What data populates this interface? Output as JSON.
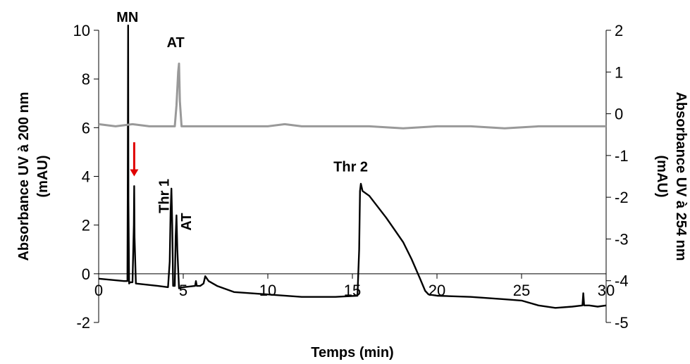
{
  "chart_data": {
    "type": "line",
    "title": "",
    "xlabel": "Temps (min)",
    "ylabel_left": [
      "Absorbance UV à 200 nm",
      "(mAU)"
    ],
    "ylabel_right": [
      "Absorbance UV à 254 nm",
      "(mAU)"
    ],
    "xlim": [
      0,
      30
    ],
    "ylim_left": [
      -2,
      10
    ],
    "ylim_right": [
      -5,
      2
    ],
    "xticks": [
      0,
      5,
      10,
      15,
      20,
      25,
      30
    ],
    "yticks_left": [
      -2,
      0,
      2,
      4,
      6,
      8,
      10
    ],
    "yticks_right": [
      -5,
      -4,
      -3,
      -2,
      -1,
      0,
      1,
      2
    ],
    "xtick_labels": [
      "0",
      "5",
      "10",
      "15",
      "20",
      "25",
      "30"
    ],
    "ytick_labels_left": [
      "-2",
      "0",
      "2",
      "4",
      "6",
      "8",
      "10"
    ],
    "ytick_labels_right": [
      "-5",
      "-4",
      "-3",
      "-2",
      "-1",
      "0",
      "1",
      "2"
    ],
    "grid": false,
    "series": [
      {
        "axis": "left",
        "color": "#000000",
        "x": [
          0,
          1.5,
          1.7,
          1.72,
          1.74,
          1.76,
          1.8,
          1.85,
          2.0,
          2.08,
          2.1,
          2.12,
          2.2,
          3.5,
          4.1,
          4.2,
          4.25,
          4.3,
          4.35,
          4.4,
          4.5,
          4.55,
          4.6,
          4.65,
          4.75,
          5.0,
          5.7,
          5.75,
          5.8,
          6.0,
          6.2,
          6.3,
          6.5,
          7.0,
          8.0,
          10.0,
          12.0,
          14.0,
          15.3,
          15.4,
          15.45,
          15.5,
          15.6,
          16.0,
          17.0,
          17.5,
          18.0,
          18.5,
          19.0,
          19.3,
          19.5,
          20.0,
          22.0,
          24.0,
          25.0,
          26.0,
          27.0,
          28.0,
          28.6,
          28.65,
          28.7,
          29.0,
          29.5,
          30.0
        ],
        "y": [
          -0.2,
          -0.3,
          -0.3,
          4.0,
          10.2,
          3.0,
          -0.4,
          -0.35,
          -0.35,
          2.0,
          3.6,
          1.5,
          -0.4,
          -0.5,
          -0.55,
          0.5,
          2.5,
          3.5,
          2.0,
          -0.5,
          -0.5,
          1.5,
          2.4,
          1.0,
          -0.6,
          -0.55,
          -0.5,
          -0.3,
          -0.5,
          -0.5,
          -0.4,
          -0.1,
          -0.3,
          -0.5,
          -0.75,
          -0.85,
          -0.95,
          -0.95,
          -0.9,
          1.0,
          3.4,
          3.7,
          3.4,
          3.2,
          2.3,
          1.8,
          1.3,
          0.6,
          -0.2,
          -0.7,
          -0.85,
          -0.9,
          -0.95,
          -1.05,
          -1.1,
          -1.3,
          -1.4,
          -1.35,
          -1.3,
          -0.8,
          -1.3,
          -1.3,
          -1.35,
          -1.3
        ]
      },
      {
        "axis": "right",
        "color": "#999999",
        "x": [
          0,
          1,
          2,
          3,
          4,
          4.5,
          4.6,
          4.7,
          4.75,
          4.8,
          4.9,
          5.0,
          5.5,
          6.0,
          8.0,
          10.0,
          11.0,
          12.0,
          14.0,
          16.0,
          18.0,
          20.0,
          22.0,
          24.0,
          26.0,
          28.0,
          30.0
        ],
        "y": [
          -0.25,
          -0.3,
          -0.25,
          -0.3,
          -0.3,
          -0.3,
          0.2,
          1.0,
          1.2,
          0.3,
          -0.3,
          -0.3,
          -0.3,
          -0.3,
          -0.3,
          -0.3,
          -0.25,
          -0.3,
          -0.3,
          -0.3,
          -0.35,
          -0.3,
          -0.3,
          -0.35,
          -0.3,
          -0.3,
          -0.3
        ]
      }
    ],
    "annotations": [
      {
        "text": "MN",
        "x": 1.7,
        "y": 10.35,
        "axis": "left",
        "rotate": false
      },
      {
        "text": "AT",
        "x": 4.55,
        "y": 9.3,
        "axis": "left",
        "rotate": false
      },
      {
        "text": "Thr 1",
        "x": 4.15,
        "y": 3.9,
        "axis": "left",
        "rotate": true
      },
      {
        "text": "AT",
        "x": 5.45,
        "y": 2.5,
        "axis": "left",
        "rotate": true
      },
      {
        "text": "Thr 2",
        "x": 14.9,
        "y": 4.2,
        "axis": "left",
        "rotate": false
      }
    ],
    "marker_arrow": {
      "color": "#e00000",
      "x": 2.1,
      "y_from": 5.4,
      "y_to": 4.0,
      "axis": "left"
    }
  }
}
